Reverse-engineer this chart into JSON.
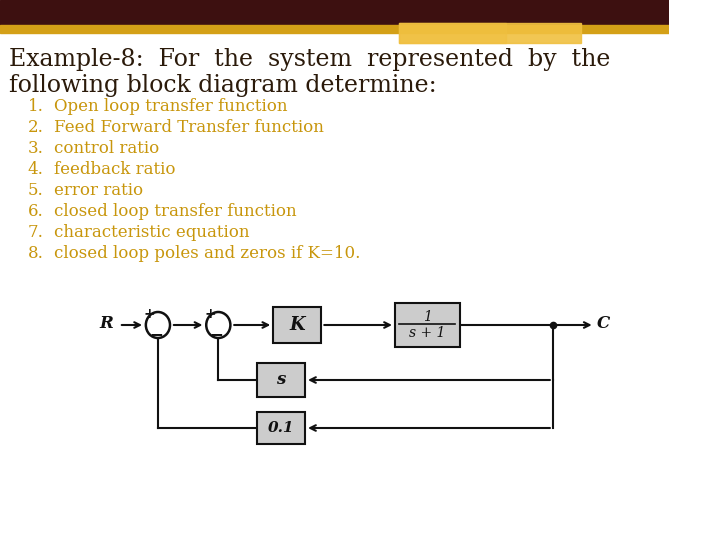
{
  "bg_color": "#ffffff",
  "header_bar_dark": "#3d1010",
  "header_bar_gold": "#d4a017",
  "header_bar_light": "#f0c040",
  "title_line1": "Example-8:  For  the  system  represented  by  the",
  "title_line2": "following block diagram determine:",
  "title_color": "#2b1a0a",
  "title_fontsize": 17,
  "list_items": [
    "Open loop transfer function",
    "Feed Forward Transfer function",
    "control ratio",
    "feedback ratio",
    "error ratio",
    "closed loop transfer function",
    "characteristic equation",
    "closed loop poles and zeros if K=10."
  ],
  "list_color": "#c8960c",
  "list_fontsize": 12,
  "diagram_line_color": "#111111",
  "diagram_box_fill": "#cccccc",
  "diagram_box_edge": "#111111",
  "diagram_text_color": "#111111"
}
